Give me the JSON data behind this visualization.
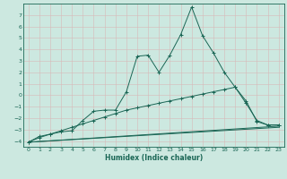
{
  "xlabel": "Humidex (Indice chaleur)",
  "background_color": "#cce8e0",
  "line_color": "#1a6655",
  "xlim": [
    -0.5,
    23.5
  ],
  "ylim": [
    -4.5,
    8.0
  ],
  "xticks": [
    0,
    1,
    2,
    3,
    4,
    5,
    6,
    7,
    8,
    9,
    10,
    11,
    12,
    13,
    14,
    15,
    16,
    17,
    18,
    19,
    20,
    21,
    22,
    23
  ],
  "yticks": [
    -4,
    -3,
    -2,
    -1,
    0,
    1,
    2,
    3,
    4,
    5,
    6,
    7
  ],
  "series1": [
    [
      0,
      -4.1
    ],
    [
      1,
      -3.6
    ],
    [
      2,
      -3.4
    ],
    [
      3,
      -3.2
    ],
    [
      4,
      -3.1
    ],
    [
      5,
      -2.2
    ],
    [
      6,
      -1.4
    ],
    [
      7,
      -1.3
    ],
    [
      8,
      -1.3
    ],
    [
      9,
      0.3
    ],
    [
      10,
      3.4
    ],
    [
      11,
      3.5
    ],
    [
      12,
      2.0
    ],
    [
      13,
      3.5
    ],
    [
      14,
      5.3
    ],
    [
      15,
      7.7
    ],
    [
      16,
      5.2
    ],
    [
      17,
      3.7
    ],
    [
      18,
      2.0
    ],
    [
      19,
      0.7
    ],
    [
      20,
      -0.7
    ],
    [
      21,
      -2.2
    ],
    [
      22,
      -2.6
    ],
    [
      23,
      -2.6
    ]
  ],
  "series2": [
    [
      0,
      -4.1
    ],
    [
      1,
      -3.7
    ],
    [
      2,
      -3.4
    ],
    [
      3,
      -3.1
    ],
    [
      4,
      -2.8
    ],
    [
      5,
      -2.5
    ],
    [
      6,
      -2.2
    ],
    [
      7,
      -1.9
    ],
    [
      8,
      -1.6
    ],
    [
      9,
      -1.3
    ],
    [
      10,
      -1.1
    ],
    [
      11,
      -0.9
    ],
    [
      12,
      -0.7
    ],
    [
      13,
      -0.5
    ],
    [
      14,
      -0.3
    ],
    [
      15,
      -0.1
    ],
    [
      16,
      0.1
    ],
    [
      17,
      0.3
    ],
    [
      18,
      0.5
    ],
    [
      19,
      0.7
    ],
    [
      20,
      -0.5
    ],
    [
      21,
      -2.3
    ],
    [
      22,
      -2.6
    ],
    [
      23,
      -2.6
    ]
  ],
  "series3_x": [
    0,
    23
  ],
  "series3_y": [
    -4.1,
    -2.7
  ],
  "series4_x": [
    0,
    23
  ],
  "series4_y": [
    -4.1,
    -2.8
  ]
}
